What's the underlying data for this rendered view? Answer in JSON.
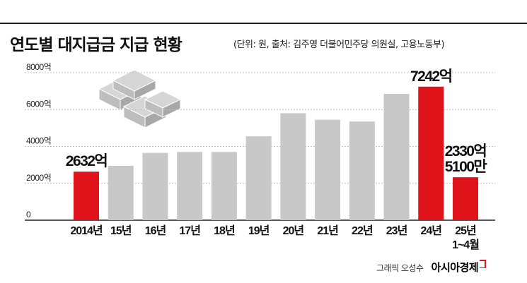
{
  "header": {
    "title": "연도별 대지급금 지급 현황",
    "source": "(단위: 원, 출처: 김주영 더불어민주당 의원실, 고용노동부)"
  },
  "footer": {
    "credit": "그래픽 오성수",
    "brand": "아시아경제"
  },
  "colors": {
    "highlight": "#e0131a",
    "bar": "#c8c8c8",
    "gridline": "#bdbdbd"
  },
  "chart_data": {
    "type": "bar",
    "title": "연도별 대지급금 지급 현황",
    "xlabel": "",
    "ylabel": "",
    "ylim": [
      0,
      8000
    ],
    "y_ticks": [
      0,
      2000,
      4000,
      6000,
      8000
    ],
    "y_tick_labels": [
      "0",
      "2000억",
      "4000억",
      "6000억",
      "8000억"
    ],
    "grid": true,
    "categories": [
      "2014년",
      "15년",
      "16년",
      "17년",
      "18년",
      "19년",
      "20년",
      "21년",
      "22년",
      "23년",
      "24년",
      "25년 1~4월"
    ],
    "values": [
      2632,
      2950,
      3650,
      3700,
      3700,
      4550,
      5800,
      5450,
      5350,
      6850,
      7242,
      2330.51
    ],
    "highlight": [
      true,
      false,
      false,
      false,
      false,
      false,
      false,
      false,
      false,
      false,
      true,
      true
    ],
    "data_labels": [
      "2632억",
      "",
      "",
      "",
      "",
      "",
      "",
      "",
      "",
      "",
      "7242억",
      "2330억\n5100만"
    ]
  }
}
